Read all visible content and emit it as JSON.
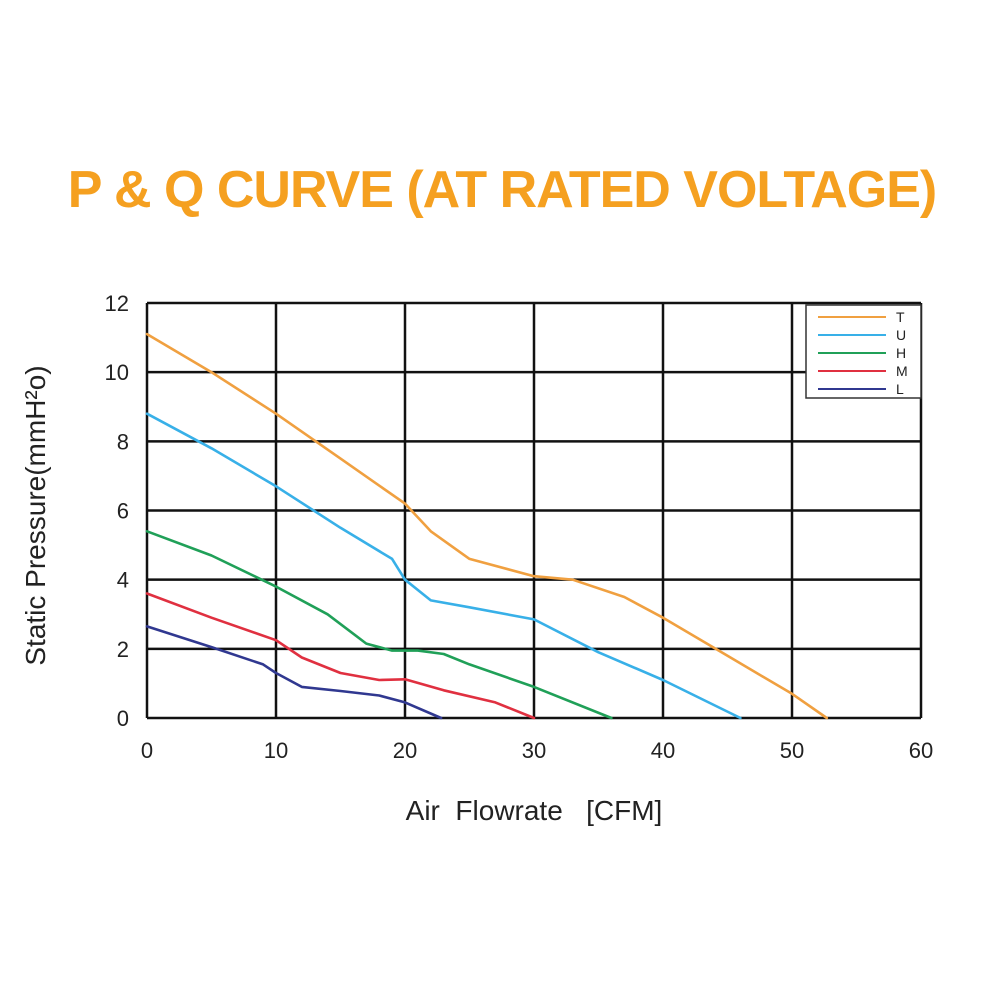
{
  "chart_data": {
    "type": "line",
    "title": "P & Q CURVE (AT RATED VOLTAGE)",
    "xlabel": "Air  Flowrate   [CFM]",
    "ylabel": "Static Pressure(mmH²o)",
    "xlim": [
      0,
      60
    ],
    "ylim": [
      0,
      12
    ],
    "xticks": [
      0,
      10,
      20,
      30,
      40,
      50,
      60
    ],
    "yticks": [
      0,
      2,
      4,
      6,
      8,
      10,
      12
    ],
    "grid": true,
    "legend_position": "top-right",
    "series": [
      {
        "name": "T",
        "color": "#f0a040",
        "points": [
          [
            0,
            11.1
          ],
          [
            5,
            10.0
          ],
          [
            10,
            8.8
          ],
          [
            15,
            7.5
          ],
          [
            20,
            6.2
          ],
          [
            22,
            5.4
          ],
          [
            25,
            4.6
          ],
          [
            30,
            4.1
          ],
          [
            33,
            4.0
          ],
          [
            37,
            3.5
          ],
          [
            40,
            2.9
          ],
          [
            45,
            1.8
          ],
          [
            50,
            0.7
          ],
          [
            52.7,
            0
          ]
        ]
      },
      {
        "name": "U",
        "color": "#38b0e8",
        "points": [
          [
            0,
            8.8
          ],
          [
            5,
            7.8
          ],
          [
            10,
            6.7
          ],
          [
            15,
            5.5
          ],
          [
            19,
            4.6
          ],
          [
            20,
            4.0
          ],
          [
            22,
            3.4
          ],
          [
            25,
            3.2
          ],
          [
            30,
            2.85
          ],
          [
            35,
            1.9
          ],
          [
            40,
            1.1
          ],
          [
            46,
            0
          ]
        ]
      },
      {
        "name": "H",
        "color": "#20a058",
        "points": [
          [
            0,
            5.4
          ],
          [
            5,
            4.7
          ],
          [
            10,
            3.8
          ],
          [
            14,
            3.0
          ],
          [
            17,
            2.15
          ],
          [
            19,
            1.95
          ],
          [
            21,
            1.95
          ],
          [
            23,
            1.85
          ],
          [
            25,
            1.55
          ],
          [
            30,
            0.9
          ],
          [
            36,
            0
          ]
        ]
      },
      {
        "name": "M",
        "color": "#e03040",
        "points": [
          [
            0,
            3.6
          ],
          [
            5,
            2.9
          ],
          [
            10,
            2.25
          ],
          [
            12,
            1.75
          ],
          [
            15,
            1.3
          ],
          [
            18,
            1.1
          ],
          [
            20,
            1.12
          ],
          [
            23,
            0.8
          ],
          [
            27,
            0.45
          ],
          [
            30,
            0
          ]
        ]
      },
      {
        "name": "L",
        "color": "#303890",
        "points": [
          [
            0,
            2.65
          ],
          [
            5,
            2.05
          ],
          [
            9,
            1.55
          ],
          [
            10,
            1.3
          ],
          [
            12,
            0.9
          ],
          [
            15,
            0.78
          ],
          [
            18,
            0.65
          ],
          [
            20,
            0.45
          ],
          [
            22.8,
            0
          ]
        ]
      }
    ]
  }
}
